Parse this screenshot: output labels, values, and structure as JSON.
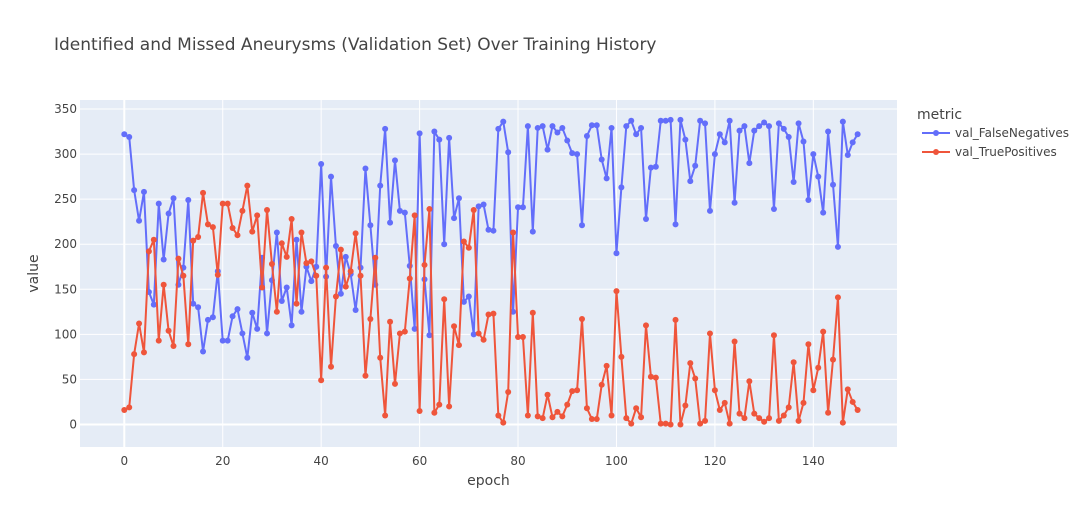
{
  "chart_data": {
    "type": "line",
    "title": "Identified and Missed Aneurysms (Validation Set) Over Training History",
    "xlabel": "epoch",
    "ylabel": "value",
    "xlim": [
      -9,
      157
    ],
    "ylim": [
      -25,
      360
    ],
    "xticks": [
      0,
      20,
      40,
      60,
      80,
      100,
      120,
      140
    ],
    "yticks": [
      0,
      50,
      100,
      150,
      200,
      250,
      300,
      350
    ],
    "grid": true,
    "legend": {
      "title": "metric",
      "placement": "right"
    },
    "series": [
      {
        "name": "val_FalseNegatives",
        "color": "#636efa",
        "values": [
          322,
          319,
          260,
          226,
          258,
          147,
          133,
          245,
          183,
          234,
          251,
          155,
          174,
          249,
          134,
          130,
          81,
          116,
          119,
          170,
          93,
          93,
          120,
          128,
          101,
          74,
          124,
          106,
          185,
          101,
          160,
          213,
          137,
          152,
          110,
          205,
          125,
          175,
          159,
          175,
          289,
          164,
          275,
          198,
          145,
          186,
          167,
          127,
          174,
          284,
          221,
          155,
          265,
          328,
          224,
          293,
          237,
          235,
          176,
          106,
          323,
          161,
          99,
          325,
          316,
          200,
          318,
          229,
          251,
          136,
          142,
          100,
          242,
          244,
          216,
          215,
          328,
          336,
          302,
          125,
          241,
          241,
          331,
          214,
          329,
          331,
          305,
          331,
          324,
          329,
          315,
          301,
          300,
          221,
          320,
          332,
          332,
          294,
          273,
          329,
          190,
          263,
          331,
          337,
          322,
          329,
          228,
          285,
          286,
          337,
          337,
          338,
          222,
          338,
          316,
          270,
          287,
          337,
          334,
          237,
          300,
          322,
          313,
          337,
          246,
          326,
          331,
          290,
          326,
          331,
          335,
          331,
          239,
          334,
          328,
          319,
          269,
          334,
          314,
          249,
          300,
          275,
          235,
          325,
          266,
          197,
          336,
          299,
          313,
          322
        ]
      },
      {
        "name": "val_TruePositives",
        "color": "#ef553b",
        "values": [
          16,
          19,
          78,
          112,
          80,
          192,
          205,
          93,
          155,
          104,
          87,
          184,
          165,
          89,
          204,
          208,
          257,
          222,
          219,
          166,
          245,
          245,
          218,
          210,
          237,
          265,
          214,
          232,
          152,
          238,
          178,
          125,
          201,
          186,
          228,
          134,
          213,
          179,
          181,
          165,
          49,
          174,
          64,
          142,
          194,
          153,
          170,
          212,
          165,
          54,
          117,
          185,
          74,
          10,
          114,
          45,
          101,
          103,
          162,
          232,
          15,
          177,
          239,
          13,
          22,
          139,
          20,
          109,
          88,
          203,
          196,
          238,
          101,
          94,
          122,
          123,
          10,
          2,
          36,
          213,
          97,
          97,
          10,
          124,
          9,
          7,
          33,
          8,
          14,
          9,
          22,
          37,
          38,
          117,
          18,
          6,
          6,
          44,
          65,
          10,
          148,
          75,
          7,
          1,
          18,
          8,
          110,
          53,
          52,
          1,
          1,
          0,
          116,
          0,
          21,
          68,
          51,
          1,
          4,
          101,
          38,
          16,
          24,
          1,
          92,
          12,
          7,
          48,
          12,
          7,
          3,
          7,
          99,
          4,
          10,
          19,
          69,
          4,
          24,
          89,
          38,
          63,
          103,
          13,
          72,
          141,
          2,
          39,
          25,
          16
        ]
      }
    ]
  }
}
